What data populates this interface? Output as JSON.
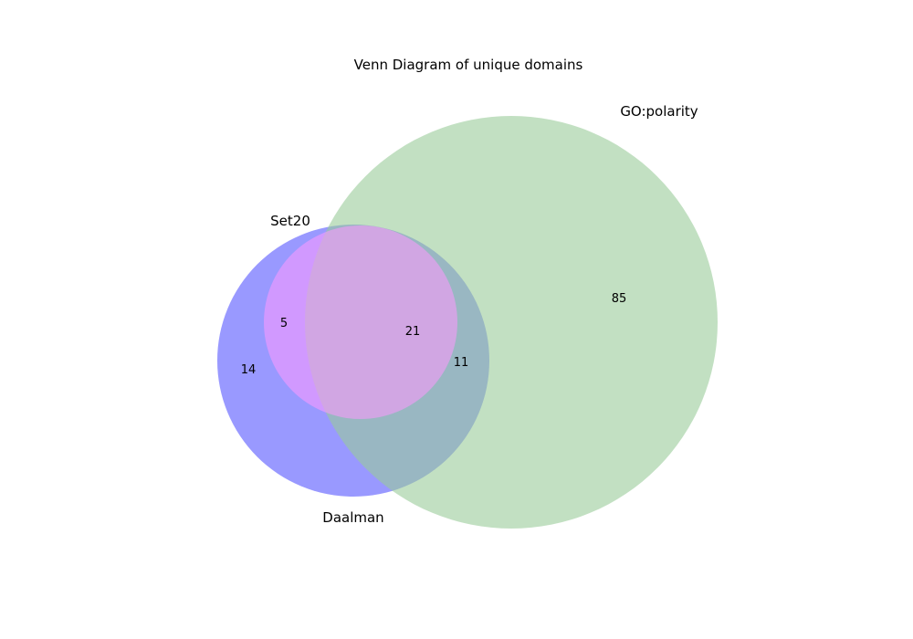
{
  "diagram": {
    "title": "Venn Diagram of unique domains",
    "sets": [
      {
        "key": "daalman",
        "name": "Daalman",
        "color": "#9999ff"
      },
      {
        "key": "set20",
        "name": "Set20",
        "color": "#ff99ff"
      },
      {
        "key": "go_polarity",
        "name": "GO:polarity",
        "color": "#99cc99"
      }
    ],
    "regions": {
      "daalman_only": "14",
      "daalman_set20": "5",
      "all_three": "21",
      "daalman_go_polarity": "11",
      "go_polarity_only": "85"
    },
    "colors": {
      "background": "#ffffff",
      "daalman_fill": "#9999ff",
      "go_polarity_fill": "#99cc99",
      "set20_fill": "#ff99ff",
      "text": "#000000"
    }
  }
}
